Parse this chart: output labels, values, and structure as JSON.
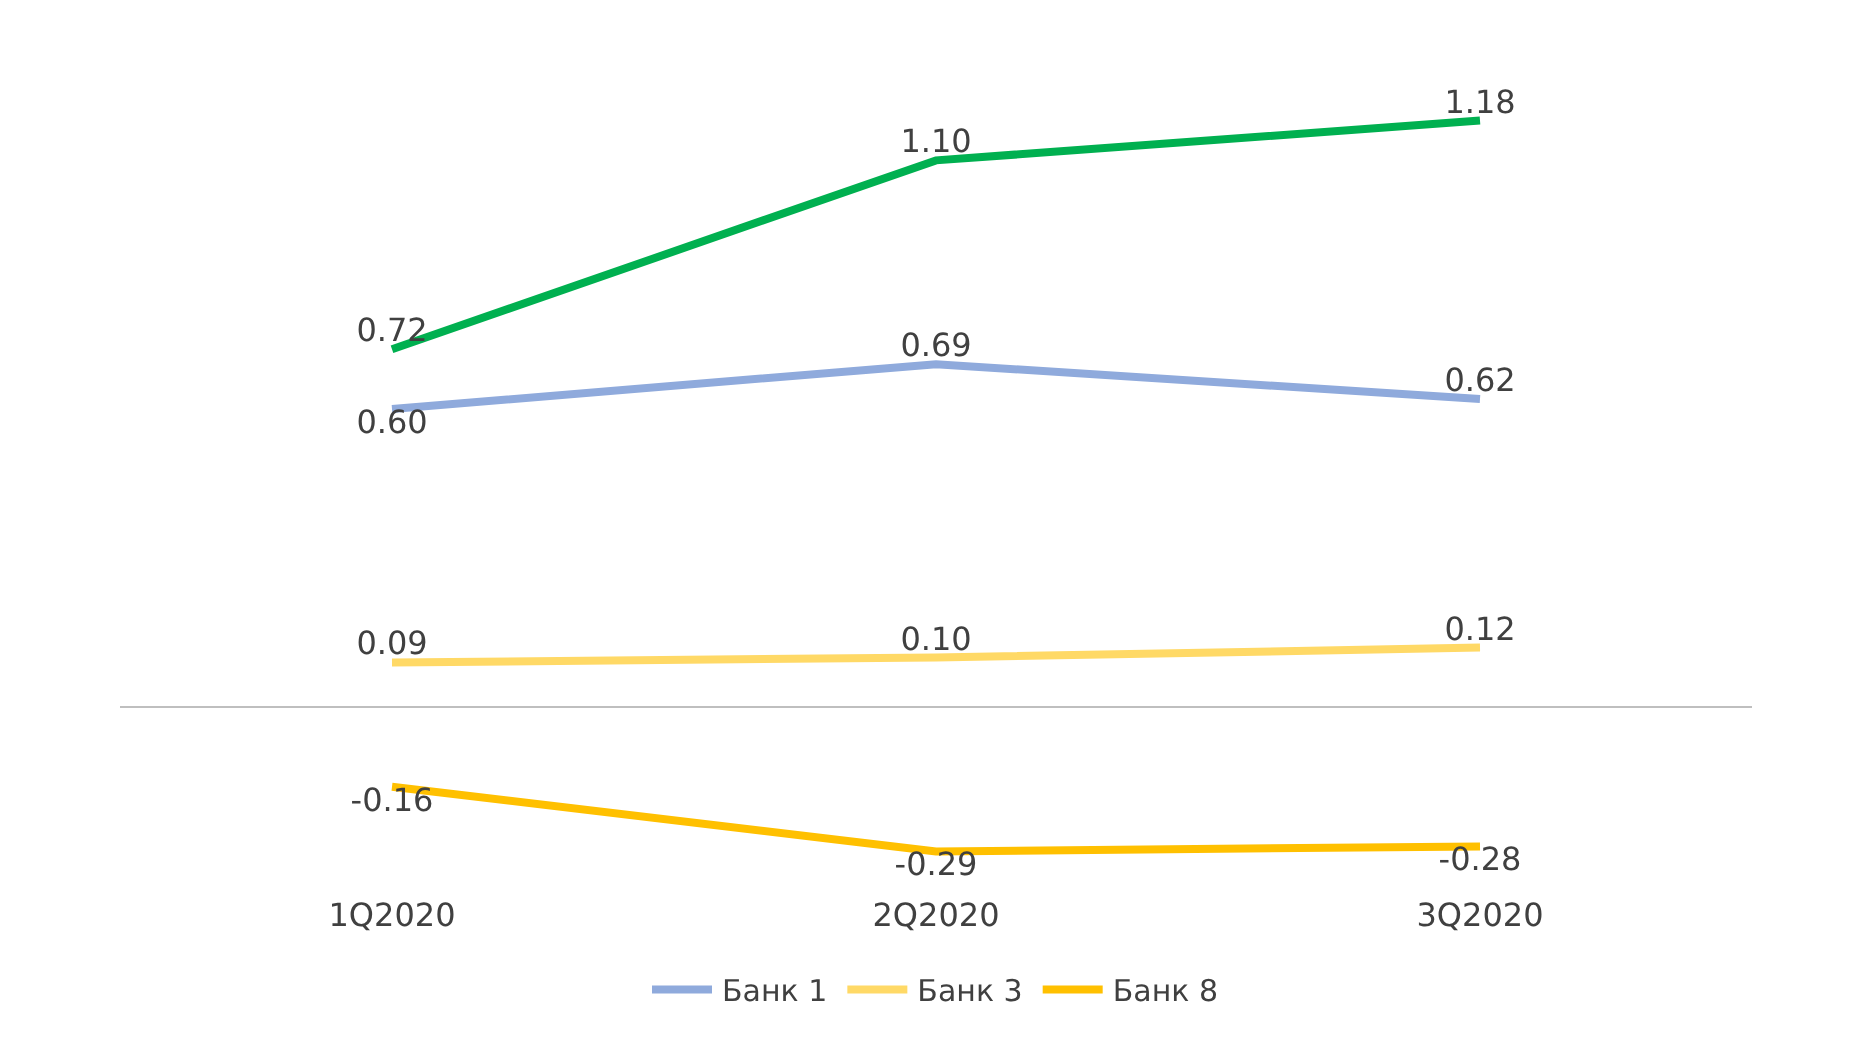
{
  "chart_data": {
    "type": "line",
    "categories": [
      "1Q2020",
      "2Q2020",
      "3Q2020"
    ],
    "series": [
      {
        "name": "Банк 1",
        "color": "#8faadc",
        "values": [
          0.6,
          0.69,
          0.62
        ],
        "value_labels": [
          "0.60",
          "0.69",
          "0.62"
        ]
      },
      {
        "name": "Банк 3",
        "color": "#ffd966",
        "values": [
          0.09,
          0.1,
          0.12
        ],
        "value_labels": [
          "0.09",
          "0.10",
          "0.12"
        ]
      },
      {
        "color": "#00b050",
        "values": [
          0.72,
          1.1,
          1.18
        ],
        "value_labels": [
          "0.72",
          "1.10",
          "1.18"
        ]
      },
      {
        "name": "Банк 8",
        "color": "#ffc000",
        "values": [
          -0.16,
          -0.29,
          -0.28
        ],
        "value_labels": [
          "-0.16",
          "-0.29",
          "-0.28"
        ]
      }
    ],
    "legend": "bottom",
    "marker": "none",
    "line_style": "solid"
  }
}
